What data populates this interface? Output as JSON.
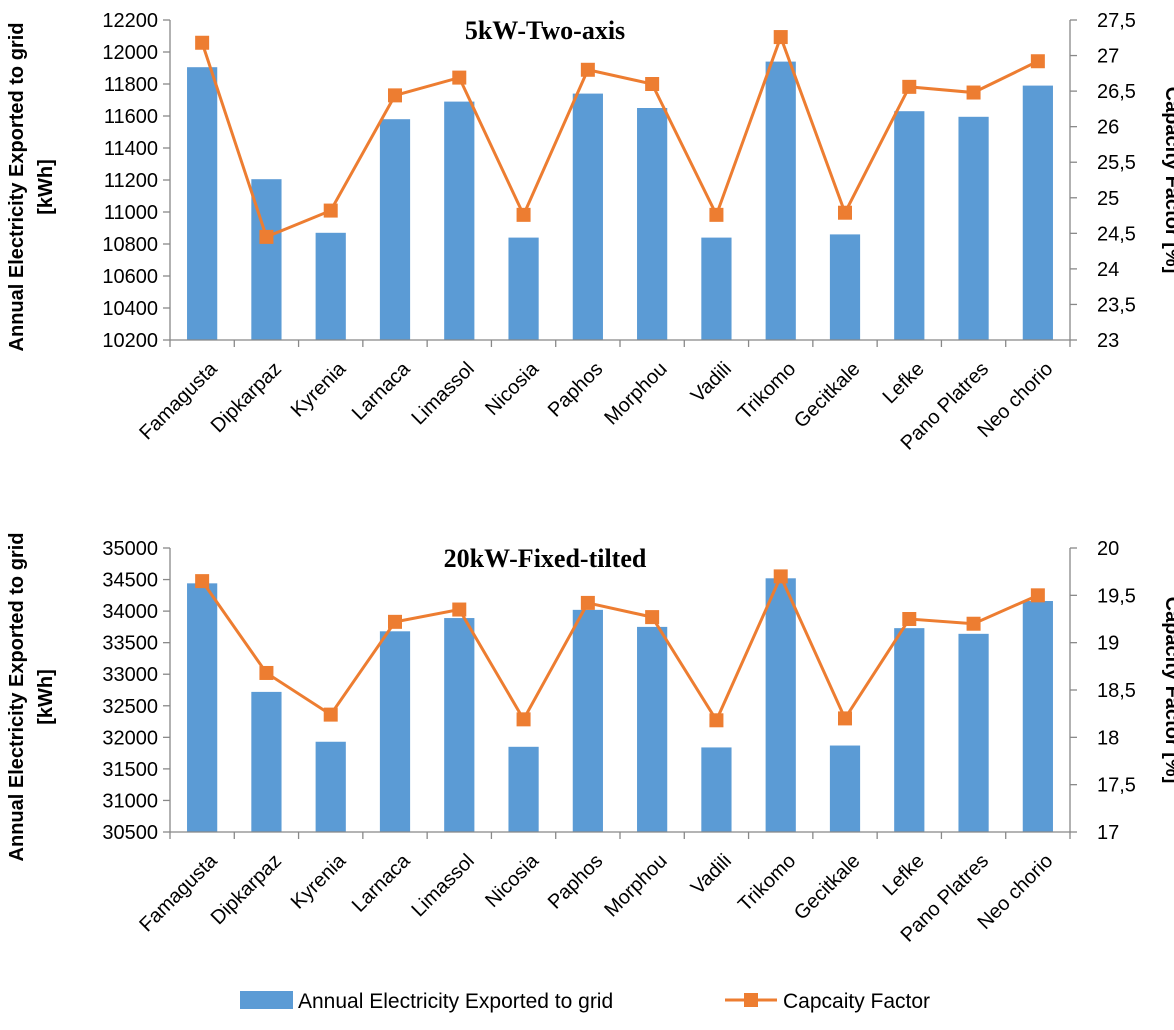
{
  "legend": {
    "bar_label": "Annual Electricity Exported to grid",
    "line_label": "Capcaity Factor"
  },
  "colors": {
    "bar": "#5b9bd5",
    "line": "#ed7d31",
    "axis": "#888888"
  },
  "chart_data": [
    {
      "type": "bar",
      "title": "5kW-Two-axis",
      "ylabel_line1": "Annual Electricity Exported to grid",
      "ylabel_line2": "[kWh]",
      "y2label": "Capacity Factor [%]",
      "categories": [
        "Famagusta",
        "Dipkarpaz",
        "Kyrenia",
        "Larnaca",
        "Limassol",
        "Nicosia",
        "Paphos",
        "Morphou",
        "Vadili",
        "Trikomo",
        "Gecitkale",
        "Lefke",
        "Pano Platres",
        "Neo chorio"
      ],
      "ylim": [
        10200,
        12200
      ],
      "yticks": [
        10200,
        10400,
        10600,
        10800,
        11000,
        11200,
        11400,
        11600,
        11800,
        12000,
        12200
      ],
      "ytick_labels": [
        "10200",
        "10400",
        "10600",
        "10800",
        "11000",
        "11200",
        "11400",
        "11600",
        "11800",
        "12000",
        "12200"
      ],
      "y2lim": [
        23,
        27.5
      ],
      "y2ticks": [
        23,
        23.5,
        24,
        24.5,
        25,
        25.5,
        26,
        26.5,
        27,
        27.5
      ],
      "y2tick_labels": [
        "23",
        "23,5",
        "24",
        "24,5",
        "25",
        "25,5",
        "26",
        "26,5",
        "27",
        "27,5"
      ],
      "series": [
        {
          "name": "Annual Electricity Exported to grid",
          "type": "bar",
          "axis": "left",
          "values": [
            11905,
            11205,
            10870,
            11580,
            11690,
            10840,
            11740,
            11650,
            10840,
            11940,
            10860,
            11630,
            11595,
            11790
          ]
        },
        {
          "name": "Capcaity Factor",
          "type": "line",
          "axis": "right",
          "values": [
            27.18,
            24.45,
            24.82,
            26.44,
            26.69,
            24.76,
            26.8,
            26.6,
            24.76,
            27.26,
            24.79,
            26.56,
            26.48,
            26.92
          ]
        }
      ]
    },
    {
      "type": "bar",
      "title": "20kW-Fixed-tilted",
      "ylabel_line1": "Annual Electricity Exported to grid",
      "ylabel_line2": "[kWh]",
      "y2label": "Capacity Factor [%]",
      "categories": [
        "Famagusta",
        "Dipkarpaz",
        "Kyrenia",
        "Larnaca",
        "Limassol",
        "Nicosia",
        "Paphos",
        "Morphou",
        "Vadili",
        "Trikomo",
        "Gecitkale",
        "Lefke",
        "Pano Platres",
        "Neo chorio"
      ],
      "ylim": [
        30500,
        35000
      ],
      "yticks": [
        30500,
        31000,
        31500,
        32000,
        32500,
        33000,
        33500,
        34000,
        34500,
        35000
      ],
      "ytick_labels": [
        "30500",
        "31000",
        "31500",
        "32000",
        "32500",
        "33000",
        "33500",
        "34000",
        "34500",
        "35000"
      ],
      "y2lim": [
        17,
        20
      ],
      "y2ticks": [
        17,
        17.5,
        18,
        18.5,
        19,
        19.5,
        20
      ],
      "y2tick_labels": [
        "17",
        "17,5",
        "18",
        "18,5",
        "19",
        "19,5",
        "20"
      ],
      "series": [
        {
          "name": "Annual Electricity Exported to grid",
          "type": "bar",
          "axis": "left",
          "values": [
            34440,
            32720,
            31930,
            33680,
            33890,
            31850,
            34020,
            33750,
            31840,
            34520,
            31870,
            33730,
            33640,
            34160
          ]
        },
        {
          "name": "Capcaity Factor",
          "type": "line",
          "axis": "right",
          "values": [
            19.65,
            18.68,
            18.24,
            19.22,
            19.35,
            18.19,
            19.42,
            19.27,
            18.18,
            19.7,
            18.2,
            19.25,
            19.2,
            19.5
          ]
        }
      ]
    }
  ]
}
